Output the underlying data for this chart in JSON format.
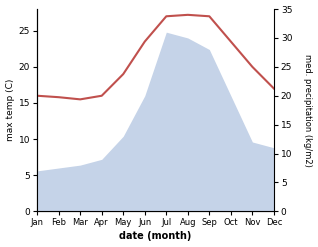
{
  "months": [
    "Jan",
    "Feb",
    "Mar",
    "Apr",
    "May",
    "Jun",
    "Jul",
    "Aug",
    "Sep",
    "Oct",
    "Nov",
    "Dec"
  ],
  "temp": [
    16.0,
    15.8,
    15.5,
    16.0,
    19.0,
    23.5,
    27.0,
    27.2,
    27.0,
    23.5,
    20.0,
    17.0
  ],
  "precip": [
    7.0,
    7.5,
    8.0,
    9.0,
    13.0,
    20.0,
    31.0,
    30.0,
    28.0,
    20.0,
    12.0,
    11.0
  ],
  "temp_color": "#c0504d",
  "precip_fill_color": "#c5d3e8",
  "ylabel_left": "max temp (C)",
  "ylabel_right": "med. precipitation (kg/m2)",
  "xlabel": "date (month)",
  "ylim_left": [
    0,
    28
  ],
  "ylim_right": [
    0,
    35
  ],
  "yticks_left": [
    0,
    5,
    10,
    15,
    20,
    25
  ],
  "yticks_right": [
    0,
    5,
    10,
    15,
    20,
    25,
    30,
    35
  ],
  "figsize": [
    3.18,
    2.47
  ],
  "dpi": 100
}
